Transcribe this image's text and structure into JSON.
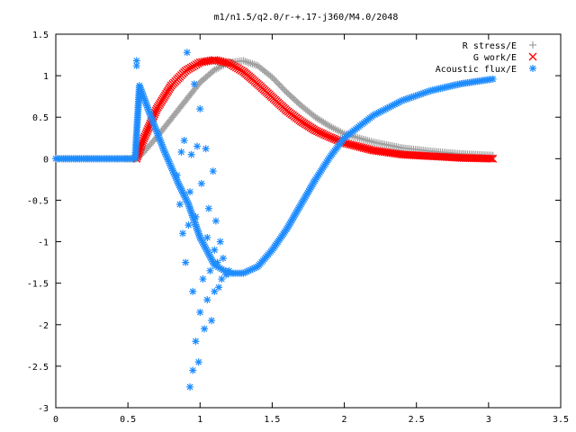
{
  "chart_data": {
    "type": "scatter",
    "title": "m1/n1.5/q2.0/r-+.17-j360/M4.0/2048",
    "xlabel": "",
    "ylabel": "",
    "xlim": [
      0,
      3.5
    ],
    "ylim": [
      -3,
      1.5
    ],
    "xticks": [
      0,
      0.5,
      1,
      1.5,
      2,
      2.5,
      3,
      3.5
    ],
    "yticks": [
      -3,
      -2.5,
      -2,
      -1.5,
      -1,
      -0.5,
      0,
      0.5,
      1,
      1.5
    ],
    "xtick_labels": [
      "0",
      "0.5",
      "1",
      "1.5",
      "2",
      "2.5",
      "3",
      "3.5"
    ],
    "ytick_labels": [
      "-3",
      "-2.5",
      "-2",
      "-1.5",
      "-1",
      "-0.5",
      "0",
      "0.5",
      "1",
      "1.5"
    ],
    "grid": false,
    "legend_position": "top-right",
    "series": [
      {
        "name": "R stress/E",
        "marker": "plus",
        "color": "#a0a0a0",
        "x": [
          0,
          0.3,
          0.56,
          0.6,
          0.7,
          0.8,
          0.9,
          1.0,
          1.1,
          1.2,
          1.3,
          1.4,
          1.5,
          1.6,
          1.7,
          1.8,
          1.9,
          2.0,
          2.2,
          2.4,
          2.6,
          2.8,
          3.03
        ],
        "y": [
          0,
          0,
          0,
          0.06,
          0.26,
          0.48,
          0.7,
          0.92,
          1.07,
          1.16,
          1.18,
          1.12,
          0.98,
          0.8,
          0.64,
          0.5,
          0.39,
          0.3,
          0.2,
          0.13,
          0.09,
          0.06,
          0.04
        ]
      },
      {
        "name": "G work/E",
        "marker": "cross",
        "color": "#ff0000",
        "x": [
          0.56,
          0.6,
          0.7,
          0.8,
          0.9,
          1.0,
          1.1,
          1.2,
          1.3,
          1.4,
          1.5,
          1.6,
          1.7,
          1.8,
          1.9,
          2.0,
          2.2,
          2.4,
          2.6,
          2.8,
          3.03
        ],
        "y": [
          0,
          0.2,
          0.6,
          0.88,
          1.06,
          1.16,
          1.19,
          1.15,
          1.05,
          0.9,
          0.74,
          0.58,
          0.45,
          0.34,
          0.26,
          0.19,
          0.1,
          0.05,
          0.03,
          0.01,
          0
        ]
      },
      {
        "name": "Acoustic flux/E",
        "marker": "star",
        "color": "#1e8cff",
        "x": [
          0,
          0.3,
          0.55,
          0.58,
          0.65,
          0.75,
          0.85,
          0.92,
          1.0,
          1.1,
          1.2,
          1.3,
          1.4,
          1.5,
          1.6,
          1.7,
          1.8,
          1.9,
          2.0,
          2.2,
          2.4,
          2.6,
          2.8,
          3.03
        ],
        "y": [
          0,
          0,
          0,
          0.88,
          0.55,
          0.1,
          -0.3,
          -0.55,
          -0.95,
          -1.28,
          -1.38,
          -1.38,
          -1.3,
          -1.1,
          -0.85,
          -0.55,
          -0.25,
          0.02,
          0.25,
          0.52,
          0.7,
          0.82,
          0.9,
          0.96
        ]
      },
      {
        "name": "Acoustic flux/E",
        "marker": "star",
        "color": "#1e8cff",
        "x": [
          0.56,
          0.56,
          0.84,
          0.86,
          0.87,
          0.88,
          0.89,
          0.9,
          0.91,
          0.92,
          0.93,
          0.93,
          0.94,
          0.95,
          0.95,
          0.96,
          0.97,
          0.97,
          0.98,
          0.99,
          1.0,
          1.0,
          1.01,
          1.02,
          1.03,
          1.04,
          1.05,
          1.05,
          1.06,
          1.07,
          1.08,
          1.09,
          1.1,
          1.1,
          1.11,
          1.12,
          1.13,
          1.14,
          1.15,
          1.16,
          1.18,
          1.2
        ],
        "y": [
          1.18,
          1.12,
          -0.2,
          -0.55,
          0.08,
          -0.9,
          0.22,
          -1.25,
          1.28,
          -0.8,
          -2.75,
          -0.4,
          0.05,
          -2.55,
          -1.6,
          0.9,
          -2.2,
          -0.7,
          0.15,
          -2.45,
          -1.85,
          0.6,
          -0.3,
          -1.45,
          -2.05,
          0.12,
          -0.95,
          -1.7,
          -0.6,
          -1.35,
          -1.95,
          -0.15,
          -1.1,
          -1.6,
          -0.75,
          -1.25,
          -1.55,
          -1.0,
          -1.45,
          -1.2,
          -1.4,
          -1.35
        ]
      }
    ]
  }
}
